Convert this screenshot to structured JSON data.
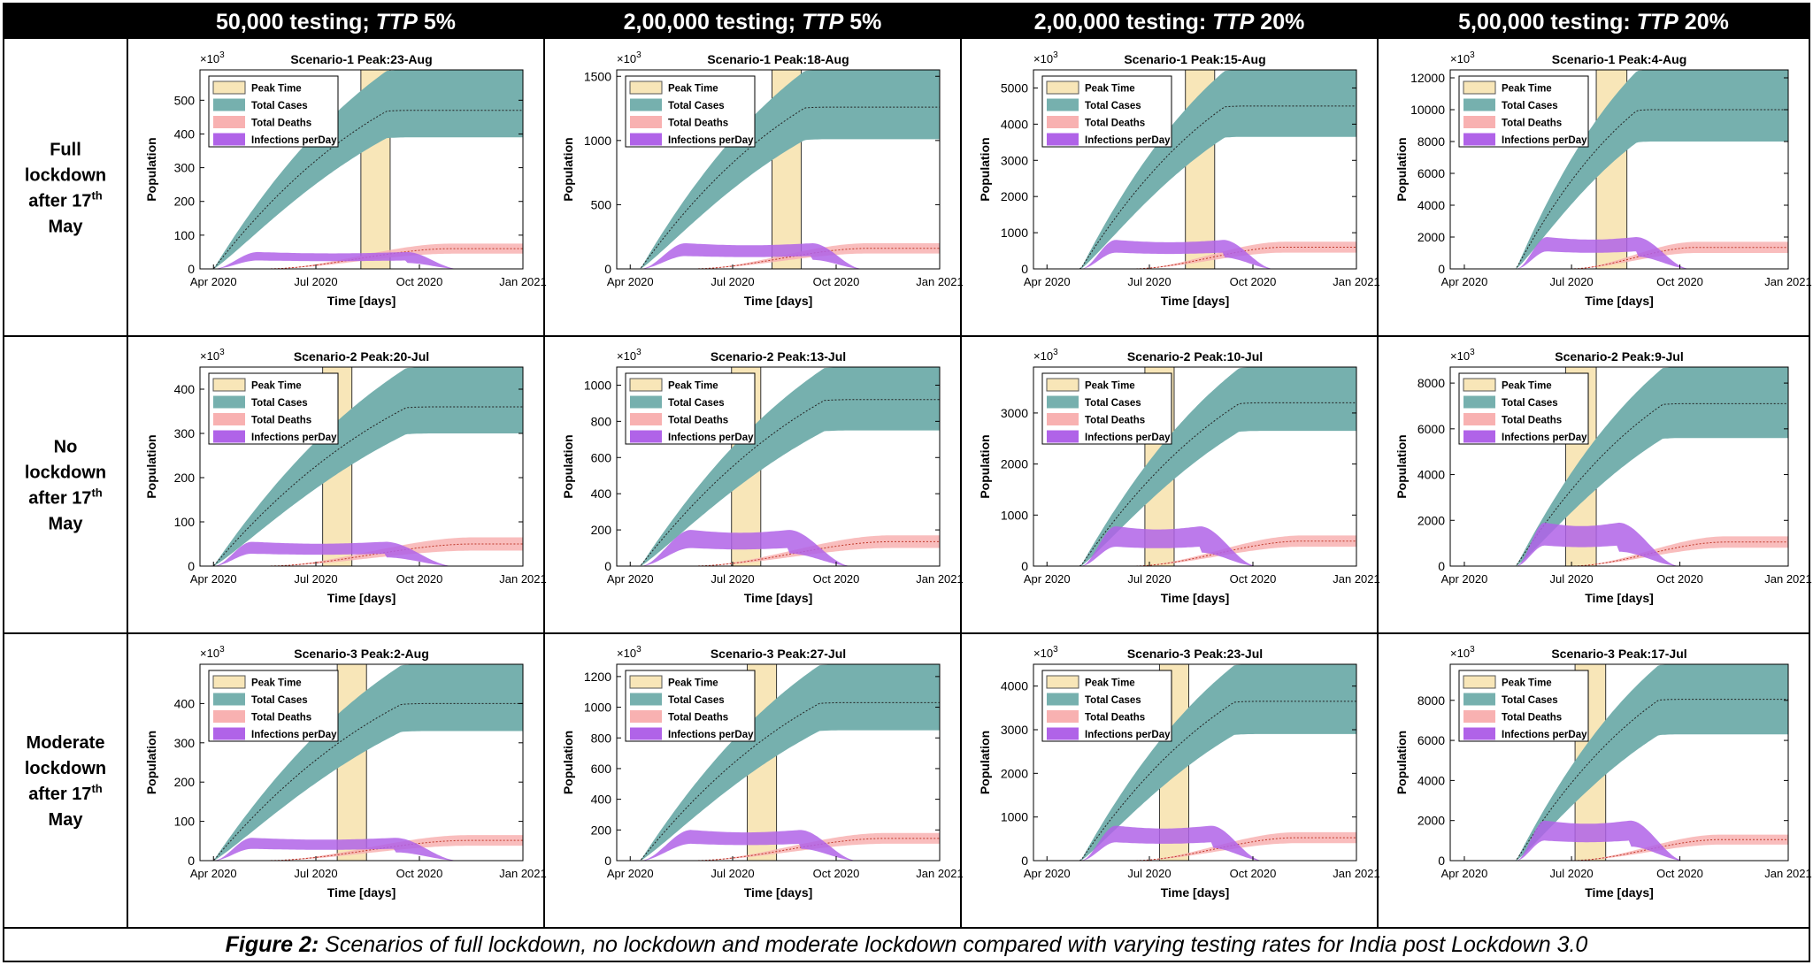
{
  "column_headers": [
    {
      "prefix": "50,000 testing; ",
      "ttp": "TTP",
      "suffix": " 5%"
    },
    {
      "prefix": "2,00,000 testing; ",
      "ttp": "TTP",
      "suffix": " 5%"
    },
    {
      "prefix": "2,00,000 testing: ",
      "ttp": "TTP",
      "suffix": " 20%"
    },
    {
      "prefix": "5,00,000 testing: ",
      "ttp": "TTP",
      "suffix": " 20%"
    }
  ],
  "row_headers": [
    {
      "line1": "Full",
      "line2": "lockdown",
      "line3": "after 17",
      "sup": "th",
      "line4": "May"
    },
    {
      "line1": "No",
      "line2": "lockdown",
      "line3": "after 17",
      "sup": "th",
      "line4": "May"
    },
    {
      "line1": "Moderate",
      "line2": "lockdown",
      "line3": "after 17",
      "sup": "th",
      "line4": "May"
    }
  ],
  "caption": {
    "label": "Figure 2:",
    "text": " Scenarios of full lockdown, no lockdown and moderate lockdown compared with varying testing rates for India post Lockdown 3.0"
  },
  "colors": {
    "peak_time": "#f8e6b8",
    "total_cases": "#76b0ae",
    "total_deaths": "#f8b1b1",
    "infections": "#b063e8"
  },
  "chart_data": {
    "type": "area",
    "layout": "3x4 small multiples",
    "xlabel": "Time [days]",
    "ylabel": "Population",
    "y_exponent_label": "×10",
    "y_exponent": "3",
    "x_ticks": [
      "Apr 2020",
      "Jul 2020",
      "Oct 2020",
      "Jan 2021"
    ],
    "x_tick_dates": [
      "2020-04-01",
      "2020-07-01",
      "2020-10-01",
      "2021-01-01"
    ],
    "xlim": [
      "2020-03-20",
      "2021-01-01"
    ],
    "legend_position": "top-left",
    "legend": [
      "Peak Time",
      "Total Cases",
      "Total Deaths",
      "Infections perDay"
    ],
    "grid": false,
    "panels": [
      {
        "row": 0,
        "col": 0,
        "title": "Scenario-1 Peak:23-Aug",
        "ylim": [
          0,
          590
        ],
        "yticks": [
          0,
          100,
          200,
          300,
          400,
          500
        ],
        "peak_window": [
          "2020-08-10",
          "2020-09-05"
        ],
        "growth_start": "2020-04-01",
        "cases_high": 590,
        "cases_mid": 470,
        "cases_low": 390,
        "cases_plateau_date": "2020-09-25",
        "deaths_high": 75,
        "deaths_low": 45,
        "infections_high": 50,
        "infections_low": 25,
        "infections_rise": "2020-05-10",
        "infections_fall": "2020-09-20",
        "infections_end": "2020-11-05"
      },
      {
        "row": 0,
        "col": 1,
        "title": "Scenario-1 Peak:18-Aug",
        "ylim": [
          0,
          1550
        ],
        "yticks": [
          0,
          500,
          1000,
          1500
        ],
        "peak_window": [
          "2020-08-05",
          "2020-08-31"
        ],
        "growth_start": "2020-04-10",
        "cases_high": 1550,
        "cases_mid": 1260,
        "cases_low": 1010,
        "cases_plateau_date": "2020-09-25",
        "deaths_high": 200,
        "deaths_low": 120,
        "infections_high": 200,
        "infections_low": 100,
        "infections_rise": "2020-05-20",
        "infections_fall": "2020-09-10",
        "infections_end": "2020-10-25"
      },
      {
        "row": 0,
        "col": 2,
        "title": "Scenario-1 Peak:15-Aug",
        "ylim": [
          0,
          5500
        ],
        "yticks": [
          0,
          1000,
          2000,
          3000,
          4000,
          5000
        ],
        "peak_window": [
          "2020-08-02",
          "2020-08-28"
        ],
        "growth_start": "2020-05-01",
        "cases_high": 5500,
        "cases_mid": 4500,
        "cases_low": 3650,
        "cases_plateau_date": "2020-09-25",
        "deaths_high": 750,
        "deaths_low": 450,
        "infections_high": 800,
        "infections_low": 450,
        "infections_rise": "2020-06-01",
        "infections_fall": "2020-09-05",
        "infections_end": "2020-10-20"
      },
      {
        "row": 0,
        "col": 3,
        "title": "Scenario-1 Peak:4-Aug",
        "ylim": [
          0,
          12500
        ],
        "yticks": [
          0,
          2000,
          4000,
          6000,
          8000,
          10000,
          12000
        ],
        "peak_window": [
          "2020-07-22",
          "2020-08-17"
        ],
        "growth_start": "2020-05-15",
        "cases_high": 12500,
        "cases_mid": 10000,
        "cases_low": 8000,
        "cases_plateau_date": "2020-09-10",
        "deaths_high": 1700,
        "deaths_low": 1000,
        "infections_high": 2000,
        "infections_low": 1100,
        "infections_rise": "2020-06-10",
        "infections_fall": "2020-08-25",
        "infections_end": "2020-10-10"
      },
      {
        "row": 1,
        "col": 0,
        "title": "Scenario-2 Peak:20-Jul",
        "ylim": [
          0,
          450
        ],
        "yticks": [
          0,
          100,
          200,
          300,
          400
        ],
        "peak_window": [
          "2020-07-07",
          "2020-08-02"
        ],
        "growth_start": "2020-04-01",
        "cases_high": 450,
        "cases_mid": 360,
        "cases_low": 300,
        "cases_plateau_date": "2020-10-15",
        "deaths_high": 65,
        "deaths_low": 35,
        "infections_high": 55,
        "infections_low": 28,
        "infections_rise": "2020-05-05",
        "infections_fall": "2020-09-01",
        "infections_end": "2020-11-01"
      },
      {
        "row": 1,
        "col": 1,
        "title": "Scenario-2 Peak:13-Jul",
        "ylim": [
          0,
          1100
        ],
        "yticks": [
          0,
          200,
          400,
          600,
          800,
          1000
        ],
        "peak_window": [
          "2020-06-30",
          "2020-07-26"
        ],
        "growth_start": "2020-04-10",
        "cases_high": 1100,
        "cases_mid": 920,
        "cases_low": 750,
        "cases_plateau_date": "2020-10-15",
        "deaths_high": 170,
        "deaths_low": 100,
        "infections_high": 200,
        "infections_low": 100,
        "infections_rise": "2020-05-25",
        "infections_fall": "2020-08-20",
        "infections_end": "2020-10-15"
      },
      {
        "row": 1,
        "col": 2,
        "title": "Scenario-2 Peak:10-Jul",
        "ylim": [
          0,
          3900
        ],
        "yticks": [
          0,
          1000,
          2000,
          3000
        ],
        "peak_window": [
          "2020-06-27",
          "2020-07-23"
        ],
        "growth_start": "2020-05-01",
        "cases_high": 3900,
        "cases_mid": 3200,
        "cases_low": 2650,
        "cases_plateau_date": "2020-10-10",
        "deaths_high": 600,
        "deaths_low": 380,
        "infections_high": 780,
        "infections_low": 380,
        "infections_rise": "2020-06-01",
        "infections_fall": "2020-08-15",
        "infections_end": "2020-10-05"
      },
      {
        "row": 1,
        "col": 3,
        "title": "Scenario-2 Peak:9-Jul",
        "ylim": [
          0,
          8700
        ],
        "yticks": [
          0,
          2000,
          4000,
          6000,
          8000
        ],
        "peak_window": [
          "2020-06-26",
          "2020-07-22"
        ],
        "growth_start": "2020-05-15",
        "cases_high": 8700,
        "cases_mid": 7100,
        "cases_low": 5600,
        "cases_plateau_date": "2020-10-05",
        "deaths_high": 1300,
        "deaths_low": 800,
        "infections_high": 1900,
        "infections_low": 900,
        "infections_rise": "2020-06-08",
        "infections_fall": "2020-08-10",
        "infections_end": "2020-10-01"
      },
      {
        "row": 2,
        "col": 0,
        "title": "Scenario-3 Peak:2-Aug",
        "ylim": [
          0,
          500
        ],
        "yticks": [
          0,
          100,
          200,
          300,
          400
        ],
        "peak_window": [
          "2020-07-20",
          "2020-08-15"
        ],
        "growth_start": "2020-04-01",
        "cases_high": 500,
        "cases_mid": 400,
        "cases_low": 330,
        "cases_plateau_date": "2020-10-10",
        "deaths_high": 65,
        "deaths_low": 38,
        "infections_high": 58,
        "infections_low": 30,
        "infections_rise": "2020-05-05",
        "infections_fall": "2020-09-10",
        "infections_end": "2020-11-05"
      },
      {
        "row": 2,
        "col": 1,
        "title": "Scenario-3 Peak:27-Jul",
        "ylim": [
          0,
          1280
        ],
        "yticks": [
          0,
          200,
          400,
          600,
          800,
          1000,
          1200
        ],
        "peak_window": [
          "2020-07-14",
          "2020-08-09"
        ],
        "growth_start": "2020-04-10",
        "cases_high": 1280,
        "cases_mid": 1030,
        "cases_low": 850,
        "cases_plateau_date": "2020-10-10",
        "deaths_high": 180,
        "deaths_low": 110,
        "infections_high": 200,
        "infections_low": 110,
        "infections_rise": "2020-05-25",
        "infections_fall": "2020-08-30",
        "infections_end": "2020-10-20"
      },
      {
        "row": 2,
        "col": 2,
        "title": "Scenario-3 Peak:23-Jul",
        "ylim": [
          0,
          4500
        ],
        "yticks": [
          0,
          1000,
          2000,
          3000,
          4000
        ],
        "peak_window": [
          "2020-07-10",
          "2020-08-05"
        ],
        "growth_start": "2020-05-01",
        "cases_high": 4500,
        "cases_mid": 3650,
        "cases_low": 2900,
        "cases_plateau_date": "2020-10-05",
        "deaths_high": 650,
        "deaths_low": 400,
        "infections_high": 800,
        "infections_low": 420,
        "infections_rise": "2020-06-01",
        "infections_fall": "2020-08-25",
        "infections_end": "2020-10-10"
      },
      {
        "row": 2,
        "col": 3,
        "title": "Scenario-3 Peak:17-Jul",
        "ylim": [
          0,
          9800
        ],
        "yticks": [
          0,
          2000,
          4000,
          6000,
          8000
        ],
        "peak_window": [
          "2020-07-04",
          "2020-07-30"
        ],
        "growth_start": "2020-05-15",
        "cases_high": 9800,
        "cases_mid": 8050,
        "cases_low": 6300,
        "cases_plateau_date": "2020-10-01",
        "deaths_high": 1300,
        "deaths_low": 800,
        "infections_high": 2000,
        "infections_low": 1000,
        "infections_rise": "2020-06-08",
        "infections_fall": "2020-08-20",
        "infections_end": "2020-10-05"
      }
    ]
  }
}
